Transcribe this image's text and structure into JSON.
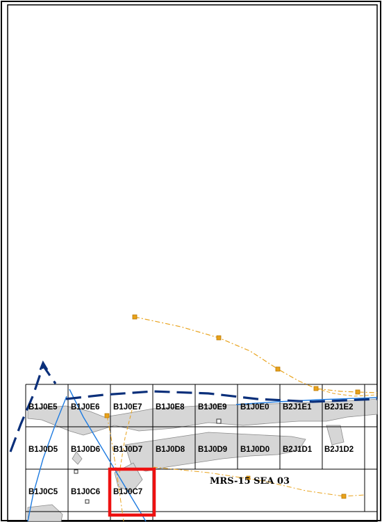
{
  "map": {
    "title": "MRS-15 SEA 03",
    "tiles": {
      "row_e": [
        "B1J0E5",
        "B1J0E6",
        "B1J0E7",
        "B1J0E8",
        "B1J0E9",
        "B1J0E0",
        "B2J1E1",
        "B2J1E2"
      ],
      "row_d": [
        "B1J0D5",
        "B1J0D6",
        "B1J0D7",
        "B1J0D8",
        "B1J0D9",
        "B1J0D0",
        "B2J1D1",
        "B2J1D2"
      ],
      "row_c": [
        "B1J0C5",
        "B1J0C6",
        "B1J0C7"
      ]
    },
    "highlighted_tile": "B1J0C7",
    "colors": {
      "highlight": "#ee1111",
      "boundary": "#0a2f7a",
      "route": "#1e7be0",
      "pipeline": "#e8a21b",
      "land": "#d9d9d9",
      "grid": "#000000"
    }
  }
}
